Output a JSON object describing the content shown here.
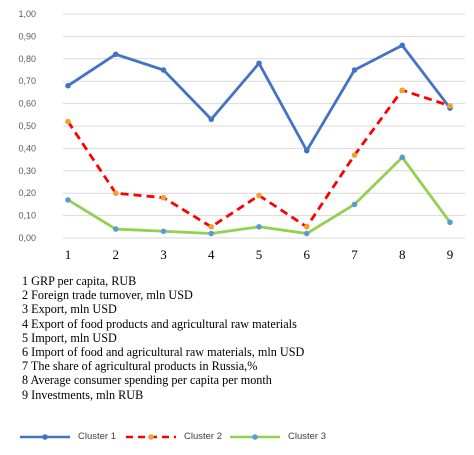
{
  "chart_data": {
    "type": "line",
    "categories": [
      "1",
      "2",
      "3",
      "4",
      "5",
      "6",
      "7",
      "8",
      "9"
    ],
    "yticks": [
      "0,00",
      "0,10",
      "0,20",
      "0,30",
      "0,40",
      "0,50",
      "0,60",
      "0,70",
      "0,80",
      "0,90",
      "1,00"
    ],
    "ylim": [
      0,
      1
    ],
    "grid": true,
    "legend_position": "bottom",
    "series": [
      {
        "name": "Cluster 1",
        "color": "#4472c4",
        "dash": "solid",
        "marker_color": "#4472c4",
        "values": [
          0.68,
          0.82,
          0.75,
          0.53,
          0.78,
          0.39,
          0.75,
          0.86,
          0.58
        ]
      },
      {
        "name": "Cluster 2",
        "color": "#ff0000",
        "dash": "dashed",
        "marker_color": "#f0a030",
        "values": [
          0.52,
          0.2,
          0.18,
          0.05,
          0.19,
          0.05,
          0.37,
          0.66,
          0.59
        ]
      },
      {
        "name": "Cluster 3",
        "color": "#92d050",
        "dash": "solid",
        "marker_color": "#5b9bd5",
        "values": [
          0.17,
          0.04,
          0.03,
          0.02,
          0.05,
          0.02,
          0.15,
          0.36,
          0.07
        ]
      }
    ]
  },
  "notes": [
    "1 GRP per capita, RUB",
    "2 Foreign trade turnover, mln USD",
    "3 Export, mln USD",
    "4 Export of food products and agricultural raw materials",
    "5 Import, mln USD",
    "6 Import of food and agricultural raw materials, mln USD",
    "7 The share of agricultural products in Russia,%",
    "8 Average consumer spending per capita per month",
    "9 Investments, mln RUB"
  ]
}
